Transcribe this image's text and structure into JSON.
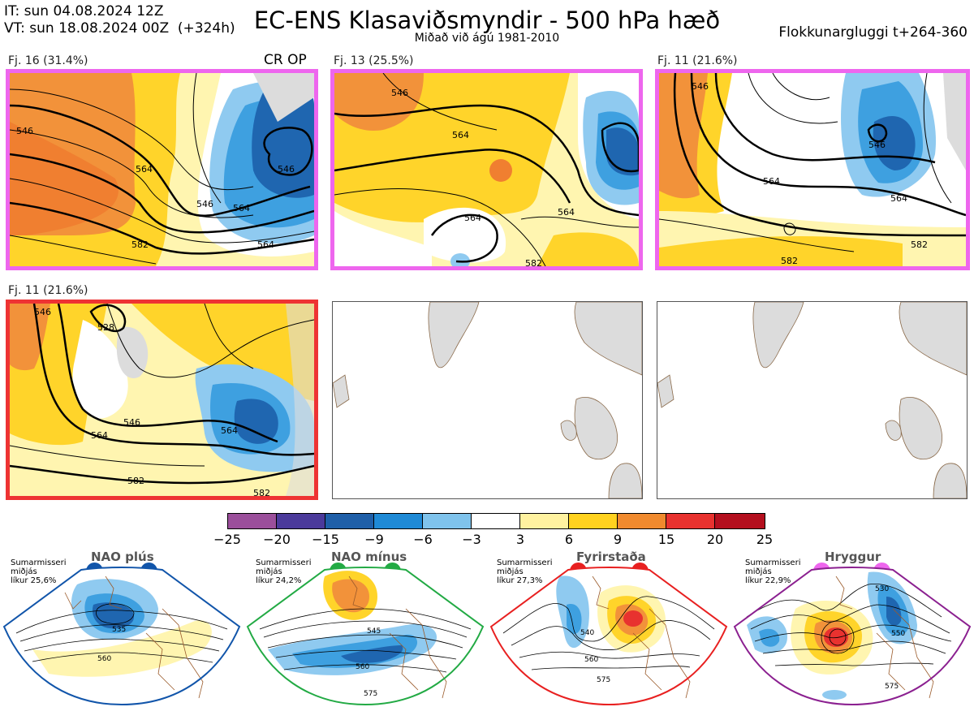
{
  "header": {
    "initial_time": "IT: sun 04.08.2024 12Z",
    "valid_time": "VT: sun 18.08.2024 00Z  (+324h)",
    "title": "EC-ENS Klasaviðsmyndir - 500 hPa hæð",
    "subtitle": "Miðað við ágú 1981-2010",
    "window": "Flokkunargluggi t+264-360"
  },
  "panels": [
    {
      "label": "Fj. 16 (31.4%)",
      "tag": "CR OP",
      "frame_color": "#ee66ee",
      "contours": [
        "546",
        "564",
        "564",
        "582",
        "546",
        "564",
        "546"
      ]
    },
    {
      "label": "Fj. 13 (25.5%)",
      "tag": "",
      "frame_color": "#ee66ee",
      "contours": [
        "546",
        "564",
        "564",
        "564",
        "582"
      ]
    },
    {
      "label": "Fj. 11 (21.6%)",
      "tag": "",
      "frame_color": "#ee66ee",
      "contours": [
        "546",
        "564",
        "546",
        "564",
        "582",
        "582"
      ]
    },
    {
      "label": "Fj. 11 (21.6%)",
      "tag": "",
      "frame_color": "#ee3333",
      "contours": [
        "528",
        "546",
        "546",
        "564",
        "564",
        "582",
        "582"
      ]
    }
  ],
  "colorbar": {
    "ticks": [
      "−25",
      "−20",
      "−15",
      "−9",
      "−6",
      "−3",
      "3",
      "6",
      "9",
      "15",
      "20",
      "25"
    ],
    "colors": [
      "#9b4f9b",
      "#4b3a9b",
      "#1f5fa8",
      "#1f8ad6",
      "#7fc3ec",
      "#ffffff",
      "#fff2a0",
      "#ffd21f",
      "#f08a2e",
      "#e8322f",
      "#b40f1e"
    ]
  },
  "regimes": [
    {
      "name": "NAO plús",
      "season": "Sumarmisseri",
      "median": "miðjás",
      "likelihood": "líkur 25,6%",
      "color": "#1155aa",
      "contours": [
        "535",
        "560"
      ]
    },
    {
      "name": "NAO mínus",
      "season": "Sumarmisseri",
      "median": "miðjás",
      "likelihood": "líkur 24,2%",
      "color": "#22aa44",
      "contours": [
        "545",
        "560",
        "575"
      ]
    },
    {
      "name": "Fyrirstaða",
      "season": "Sumarmisseri",
      "median": "miðjás",
      "likelihood": "líkur 27,3%",
      "color": "#e82020",
      "contours": [
        "540",
        "560",
        "575"
      ]
    },
    {
      "name": "Hryggur",
      "season": "Sumarmisseri",
      "median": "miðjás",
      "likelihood": "líkur 22,9%",
      "color": "#ee66ee",
      "frame_color": "#8b2090",
      "contours": [
        "530",
        "550",
        "575"
      ]
    }
  ]
}
